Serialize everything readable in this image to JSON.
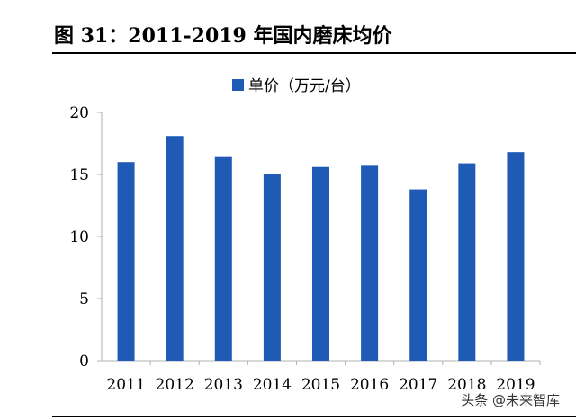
{
  "figure": {
    "title": "图 31：2011-2019 年国内磨床均价",
    "watermark": "头条 @未来智库"
  },
  "colors": {
    "bar": "#1f5bb5",
    "axis": "#b0b0b0",
    "text": "#000000"
  },
  "chart_data": {
    "type": "bar",
    "categories": [
      "2011",
      "2012",
      "2013",
      "2014",
      "2015",
      "2016",
      "2017",
      "2018",
      "2019"
    ],
    "series": [
      {
        "name": "单价（万元/台）",
        "values": [
          16.0,
          18.1,
          16.4,
          15.0,
          15.6,
          15.7,
          13.8,
          15.9,
          16.8
        ]
      }
    ],
    "title": "",
    "xlabel": "",
    "ylabel": "",
    "ylim": [
      0,
      20
    ],
    "yticks": [
      0,
      5,
      10,
      15,
      20
    ],
    "grid": false,
    "legend": "top-center"
  }
}
